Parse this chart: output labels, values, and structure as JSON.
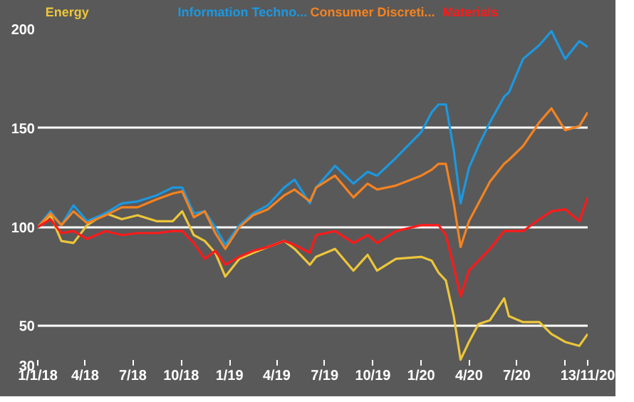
{
  "chart_data": {
    "type": "line",
    "grid": "y",
    "line_style": "solid",
    "ylim": [
      30,
      200
    ],
    "yticks": [
      30,
      50,
      100,
      150,
      200
    ],
    "xlim": [
      "2018-01-01",
      "2020-11-13"
    ],
    "xticks": [
      {
        "value": "2018-01-01",
        "label": "1/1/18"
      },
      {
        "value": "2018-04-01",
        "label": "4/18"
      },
      {
        "value": "2018-07-01",
        "label": "7/18"
      },
      {
        "value": "2018-10-01",
        "label": "10/18"
      },
      {
        "value": "2019-01-01",
        "label": "1/19"
      },
      {
        "value": "2019-04-01",
        "label": "4/19"
      },
      {
        "value": "2019-07-01",
        "label": "7/19"
      },
      {
        "value": "2019-10-01",
        "label": "10/19"
      },
      {
        "value": "2020-01-01",
        "label": "1/20"
      },
      {
        "value": "2020-04-01",
        "label": "4/20"
      },
      {
        "value": "2020-07-01",
        "label": "7/20"
      },
      {
        "value": "2020-10-01",
        "label": null
      },
      {
        "value": "2020-11-13",
        "label": "13/11/20"
      }
    ],
    "x": [
      "2018-01-01",
      "2018-01-25",
      "2018-02-15",
      "2018-03-10",
      "2018-04-05",
      "2018-05-10",
      "2018-06-10",
      "2018-07-10",
      "2018-08-15",
      "2018-09-15",
      "2018-10-03",
      "2018-10-25",
      "2018-11-15",
      "2018-12-05",
      "2018-12-24",
      "2019-01-20",
      "2019-02-15",
      "2019-03-15",
      "2019-04-15",
      "2019-05-05",
      "2019-06-03",
      "2019-06-15",
      "2019-07-21",
      "2019-08-25",
      "2019-09-21",
      "2019-10-09",
      "2019-11-14",
      "2020-01-01",
      "2020-01-21",
      "2020-02-03",
      "2020-02-17",
      "2020-03-03",
      "2020-03-16",
      "2020-04-01",
      "2020-04-19",
      "2020-05-11",
      "2020-06-07",
      "2020-06-16",
      "2020-07-13",
      "2020-08-13",
      "2020-09-05",
      "2020-10-01",
      "2020-10-28",
      "2020-11-13"
    ],
    "series": [
      {
        "name": "Energy",
        "color": "#ecc63a",
        "values": [
          100,
          106,
          93,
          92,
          101,
          107,
          104,
          106,
          103,
          103,
          108,
          96,
          93,
          87,
          75,
          84,
          87,
          90,
          93,
          89,
          81,
          85,
          89,
          78,
          86,
          78,
          84,
          85,
          83,
          77,
          73,
          55,
          33,
          42,
          51,
          53,
          64,
          55,
          52,
          52,
          46,
          42,
          40,
          46
        ]
      },
      {
        "name": "Information Techno...",
        "color": "#1c98e0",
        "values": [
          100,
          108,
          101,
          111,
          103,
          107,
          112,
          113,
          116,
          120,
          120,
          107,
          108,
          100,
          91,
          101,
          107,
          111,
          120,
          124,
          112,
          120,
          131,
          122,
          128,
          126,
          135,
          148,
          158,
          162,
          162,
          139,
          112,
          130,
          141,
          153,
          166,
          168,
          185,
          192,
          199,
          185,
          194,
          191
        ]
      },
      {
        "name": "Consumer Discreti...",
        "color": "#f58220",
        "values": [
          100,
          107,
          101,
          108,
          102,
          106,
          110,
          110,
          114,
          117,
          118,
          105,
          108,
          97,
          89,
          100,
          106,
          109,
          116,
          119,
          113,
          120,
          126,
          115,
          122,
          119,
          121,
          126,
          129,
          132,
          132,
          112,
          90,
          103,
          112,
          123,
          132,
          134,
          141,
          153,
          160,
          149,
          151,
          158
        ]
      },
      {
        "name": "Materials",
        "color": "#ff1a1a",
        "values": [
          100,
          104,
          97,
          98,
          94,
          98,
          96,
          97,
          97,
          98,
          98,
          92,
          84,
          88,
          81,
          85,
          88,
          90,
          93,
          91,
          87,
          96,
          98,
          92,
          96,
          92,
          98,
          101,
          101,
          101,
          96,
          80,
          65,
          78,
          83,
          89,
          98,
          98,
          98,
          104,
          108,
          109,
          103,
          115
        ]
      }
    ]
  }
}
